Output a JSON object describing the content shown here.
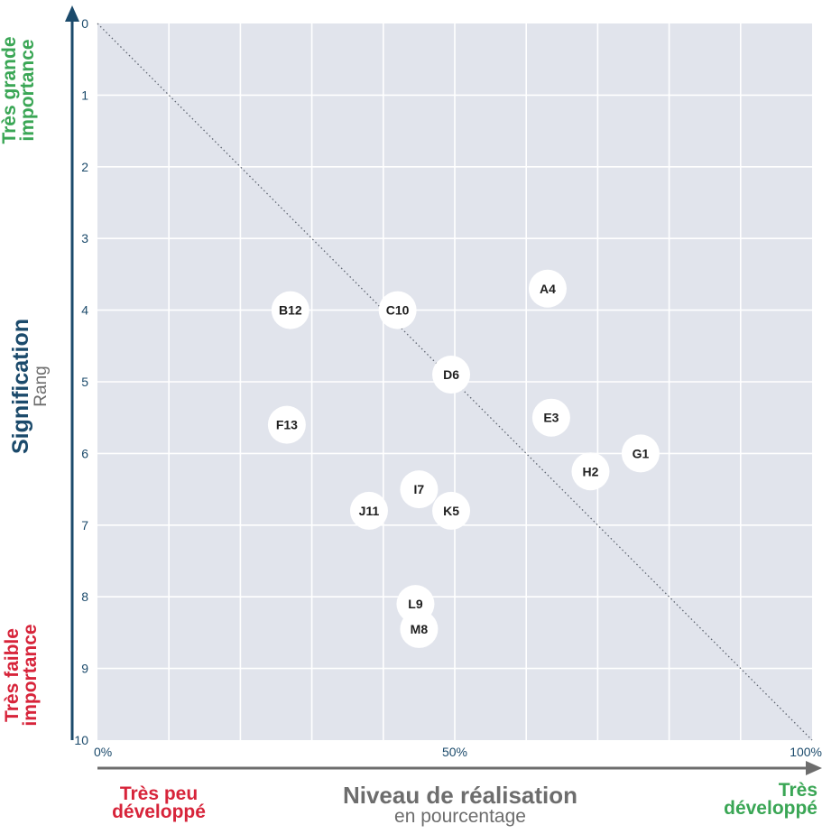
{
  "chart_data": {
    "type": "scatter",
    "x_axis": {
      "title": "Niveau de réalisation",
      "subtitle": "en pourcentage",
      "range": [
        0,
        100
      ],
      "tick_labels": [
        {
          "value": 0,
          "label": "0%"
        },
        {
          "value": 50,
          "label": "50%"
        },
        {
          "value": 100,
          "label": "100%"
        }
      ],
      "low_label": [
        "Très peu",
        "développé"
      ],
      "high_label": [
        "Très",
        "développé"
      ]
    },
    "y_axis": {
      "title": "Signification",
      "subtitle": "Rang",
      "range": [
        0,
        10
      ],
      "inverted": true,
      "ticks": [
        0,
        1,
        2,
        3,
        4,
        5,
        6,
        7,
        8,
        9,
        10
      ],
      "top_label": [
        "Très grande",
        "importance"
      ],
      "bottom_label": [
        "Très faible",
        "importance"
      ]
    },
    "grid": true,
    "reference_line": {
      "from": [
        0,
        0
      ],
      "to": [
        100,
        10
      ],
      "style": "dotted"
    },
    "points": [
      {
        "label": "A4",
        "x": 63,
        "y": 3.7
      },
      {
        "label": "B12",
        "x": 27,
        "y": 4.0
      },
      {
        "label": "C10",
        "x": 42,
        "y": 4.0
      },
      {
        "label": "D6",
        "x": 49.5,
        "y": 4.9
      },
      {
        "label": "E3",
        "x": 63.5,
        "y": 5.5
      },
      {
        "label": "F13",
        "x": 26.5,
        "y": 5.6
      },
      {
        "label": "G1",
        "x": 76,
        "y": 6.0
      },
      {
        "label": "H2",
        "x": 69,
        "y": 6.25
      },
      {
        "label": "I7",
        "x": 45,
        "y": 6.5
      },
      {
        "label": "J11",
        "x": 38,
        "y": 6.8
      },
      {
        "label": "K5",
        "x": 49.5,
        "y": 6.8
      },
      {
        "label": "L9",
        "x": 44.5,
        "y": 8.1
      },
      {
        "label": "M8",
        "x": 45,
        "y": 8.45
      }
    ]
  },
  "colors": {
    "plot_bg": "#e1e4ec",
    "grid": "#ffffff",
    "axis": "#1b4a6b",
    "high": "#3aa655",
    "low": "#d7243a"
  }
}
